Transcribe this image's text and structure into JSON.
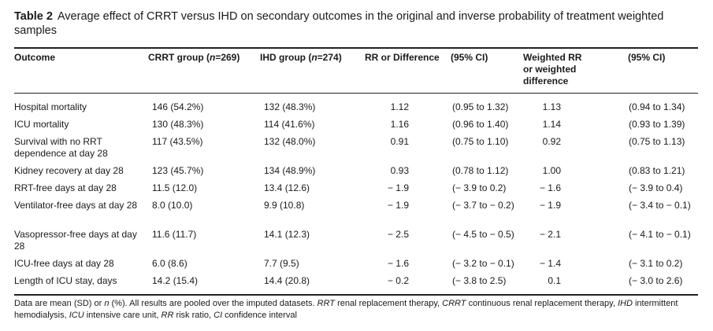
{
  "caption": {
    "label": "Table 2",
    "text": "Average effect of CRRT versus IHD on secondary outcomes in the original and inverse probability of treatment weighted samples"
  },
  "headers": [
    {
      "id": "outcome",
      "parts": [
        {
          "t": "Outcome"
        }
      ]
    },
    {
      "id": "crrt",
      "parts": [
        {
          "t": "CRRT group ("
        },
        {
          "t": "n",
          "i": true
        },
        {
          "t": "=269)"
        }
      ]
    },
    {
      "id": "ihd",
      "parts": [
        {
          "t": "IHD group ("
        },
        {
          "t": "n",
          "i": true
        },
        {
          "t": "=274)"
        }
      ]
    },
    {
      "id": "rr",
      "parts": [
        {
          "t": "RR or Difference"
        }
      ]
    },
    {
      "id": "ci1",
      "parts": [
        {
          "t": "(95% CI)"
        }
      ]
    },
    {
      "id": "wt",
      "parts": [
        {
          "t": "Weighted RR"
        },
        {
          "br": true
        },
        {
          "t": "or weighted"
        },
        {
          "br": true
        },
        {
          "t": "difference"
        }
      ]
    },
    {
      "id": "ci2",
      "parts": [
        {
          "t": "(95% CI)"
        }
      ]
    }
  ],
  "rows": [
    {
      "outcome": "Hospital mortality",
      "crrt": "146 (54.2%)",
      "ihd": "132 (48.3%)",
      "rr": "1.12",
      "ci1": "(0.95 to 1.32)",
      "wt": "1.13",
      "ci2": "(0.94 to 1.34)"
    },
    {
      "outcome": "ICU mortality",
      "crrt": "130 (48.3%)",
      "ihd": "114 (41.6%)",
      "rr": "1.16",
      "ci1": "(0.96 to 1.40)",
      "wt": "1.14",
      "ci2": "(0.93 to 1.39)"
    },
    {
      "outcome": "Survival with no RRT dependence at day 28",
      "crrt": "117 (43.5%)",
      "ihd": "132 (48.0%)",
      "rr": "0.91",
      "ci1": "(0.75 to 1.10)",
      "wt": "0.92",
      "ci2": "(0.75 to 1.13)"
    },
    {
      "outcome": "Kidney recovery at day 28",
      "crrt": "123 (45.7%)",
      "ihd": "134 (48.9%)",
      "rr": "0.93",
      "ci1": "(0.78 to 1.12)",
      "wt": "1.00",
      "ci2": "(0.83 to 1.21)"
    },
    {
      "outcome": "RRT-free days at day 28",
      "crrt": "11.5 (12.0)",
      "ihd": "13.4 (12.6)",
      "rr": "− 1.9",
      "ci1": "(− 3.9 to 0.2)",
      "wt": "− 1.6",
      "ci2": "(− 3.9 to 0.4)"
    },
    {
      "outcome": "Ventilator-free days at day 28",
      "crrt": "8.0 (10.0)",
      "ihd": "9.9 (10.8)",
      "rr": "− 1.9",
      "ci1": "(− 3.7 to − 0.2)",
      "wt": "− 1.9",
      "ci2": "(− 3.4 to − 0.1)"
    },
    {
      "outcome": "Vasopressor-free days at day 28",
      "crrt": "11.6 (11.7)",
      "ihd": "14.1 (12.3)",
      "rr": "− 2.5",
      "ci1": "(− 4.5 to − 0.5)",
      "wt": "− 2.1",
      "ci2": "(− 4.1 to − 0.1)"
    },
    {
      "outcome": "ICU-free days at day 28",
      "crrt": "6.0 (8.6)",
      "ihd": "7.7 (9.5)",
      "rr": "− 1.6",
      "ci1": "(− 3.2 to − 0.1)",
      "wt": "− 1.4",
      "ci2": "(− 3.1 to 0.2)"
    },
    {
      "outcome": "Length of ICU stay, days",
      "crrt": "14.2 (15.4)",
      "ihd": "14.4 (20.8)",
      "rr": "− 0.2",
      "ci1": "(− 3.8 to 2.5)",
      "wt": "0.1",
      "ci2": "(− 3.0 to 2.6)"
    }
  ],
  "footnote": [
    {
      "t": "Data are mean (SD) or "
    },
    {
      "t": "n",
      "i": true
    },
    {
      "t": " (%). All results are pooled over the imputed datasets. "
    },
    {
      "t": "RRT",
      "i": true
    },
    {
      "t": " renal replacement therapy, "
    },
    {
      "t": "CRRT",
      "i": true
    },
    {
      "t": " continuous renal replacement therapy, "
    },
    {
      "t": "IHD",
      "i": true
    },
    {
      "t": " intermittent hemodialysis, "
    },
    {
      "t": "ICU",
      "i": true
    },
    {
      "t": " intensive care unit, "
    },
    {
      "t": "RR",
      "i": true
    },
    {
      "t": " risk ratio, "
    },
    {
      "t": "CI",
      "i": true
    },
    {
      "t": " confidence interval"
    }
  ]
}
